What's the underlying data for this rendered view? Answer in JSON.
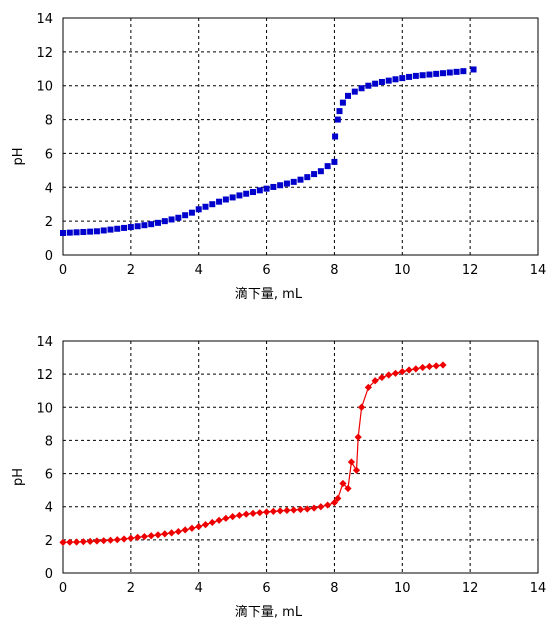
{
  "chart_data": [
    {
      "type": "scatter",
      "xlabel": "滴下量, mL",
      "ylabel": "pH",
      "xlim": [
        0,
        14
      ],
      "ylim": [
        0,
        14
      ],
      "x_ticks": [
        0,
        2,
        4,
        6,
        8,
        10,
        12,
        14
      ],
      "y_ticks": [
        0,
        2,
        4,
        6,
        8,
        10,
        12,
        14
      ],
      "grid": true,
      "color": "#0000cc",
      "marker": "square",
      "series": [
        {
          "x": [
            0.0,
            0.2,
            0.4,
            0.6,
            0.8,
            1.0,
            1.2,
            1.4,
            1.6,
            1.8,
            2.0,
            2.2,
            2.4,
            2.6,
            2.8,
            3.0,
            3.2,
            3.4,
            3.6,
            3.8,
            4.0,
            4.2,
            4.4,
            4.6,
            4.8,
            5.0,
            5.2,
            5.4,
            5.6,
            5.8,
            6.0,
            6.2,
            6.4,
            6.6,
            6.8,
            7.0,
            7.2,
            7.4,
            7.6,
            7.8,
            8.0,
            8.02,
            8.1,
            8.15,
            8.25,
            8.4,
            8.6,
            8.8,
            9.0,
            9.2,
            9.4,
            9.6,
            9.8,
            10.0,
            10.2,
            10.4,
            10.6,
            10.8,
            11.0,
            11.2,
            11.4,
            11.6,
            11.8,
            12.1
          ],
          "y": [
            1.3,
            1.32,
            1.34,
            1.36,
            1.38,
            1.4,
            1.45,
            1.5,
            1.55,
            1.6,
            1.65,
            1.7,
            1.76,
            1.82,
            1.9,
            2.0,
            2.1,
            2.2,
            2.35,
            2.5,
            2.7,
            2.85,
            3.0,
            3.15,
            3.28,
            3.4,
            3.52,
            3.62,
            3.72,
            3.82,
            3.92,
            4.02,
            4.12,
            4.22,
            4.32,
            4.45,
            4.6,
            4.78,
            4.95,
            5.25,
            5.5,
            7.0,
            8.0,
            8.5,
            9.0,
            9.4,
            9.65,
            9.85,
            10.0,
            10.12,
            10.22,
            10.3,
            10.38,
            10.45,
            10.52,
            10.58,
            10.62,
            10.66,
            10.7,
            10.74,
            10.78,
            10.82,
            10.86,
            10.96
          ]
        }
      ]
    },
    {
      "type": "line",
      "xlabel": "滴下量, mL",
      "ylabel": "pH",
      "xlim": [
        0,
        14
      ],
      "ylim": [
        0,
        14
      ],
      "x_ticks": [
        0,
        2,
        4,
        6,
        8,
        10,
        12,
        14
      ],
      "y_ticks": [
        0,
        2,
        4,
        6,
        8,
        10,
        12,
        14
      ],
      "grid": true,
      "color": "#ee0000",
      "marker": "diamond",
      "series": [
        {
          "x": [
            0.0,
            0.2,
            0.4,
            0.6,
            0.8,
            1.0,
            1.2,
            1.4,
            1.6,
            1.8,
            2.0,
            2.2,
            2.4,
            2.6,
            2.8,
            3.0,
            3.2,
            3.4,
            3.6,
            3.8,
            4.0,
            4.2,
            4.4,
            4.6,
            4.8,
            5.0,
            5.2,
            5.4,
            5.6,
            5.8,
            6.0,
            6.2,
            6.4,
            6.6,
            6.8,
            7.0,
            7.2,
            7.4,
            7.6,
            7.8,
            8.0,
            8.1,
            8.25,
            8.4,
            8.5,
            8.65,
            8.7,
            8.8,
            9.0,
            9.2,
            9.4,
            9.6,
            9.8,
            10.0,
            10.2,
            10.4,
            10.6,
            10.8,
            11.0,
            11.2
          ],
          "y": [
            1.85,
            1.86,
            1.87,
            1.89,
            1.91,
            1.93,
            1.95,
            1.98,
            2.01,
            2.05,
            2.1,
            2.15,
            2.2,
            2.25,
            2.3,
            2.36,
            2.42,
            2.5,
            2.6,
            2.7,
            2.8,
            2.92,
            3.05,
            3.18,
            3.3,
            3.4,
            3.48,
            3.55,
            3.6,
            3.64,
            3.68,
            3.72,
            3.75,
            3.78,
            3.8,
            3.83,
            3.86,
            3.92,
            4.0,
            4.1,
            4.25,
            4.5,
            5.4,
            5.1,
            6.7,
            6.2,
            8.2,
            10.0,
            11.2,
            11.6,
            11.8,
            11.95,
            12.05,
            12.15,
            12.25,
            12.32,
            12.4,
            12.46,
            12.5,
            12.55
          ]
        }
      ]
    }
  ]
}
